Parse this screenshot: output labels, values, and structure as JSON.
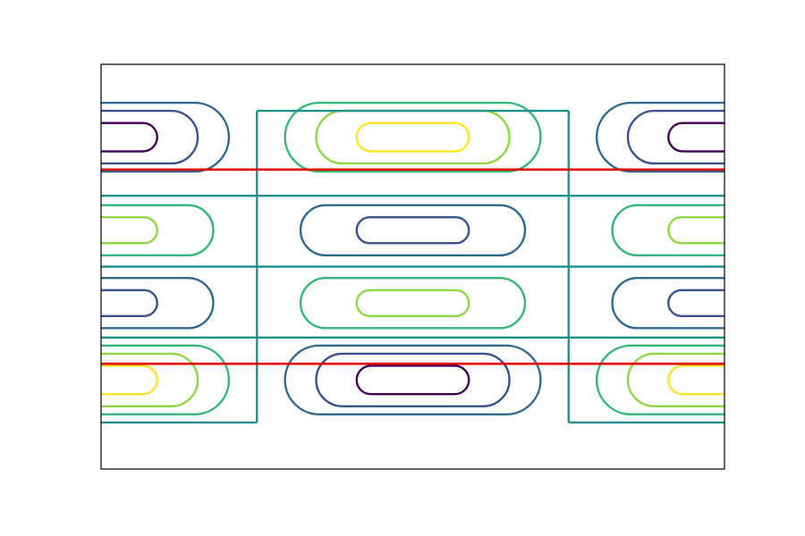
{
  "chart_data": {
    "type": "contour",
    "title": "",
    "xlabel": "",
    "ylabel": "",
    "xlim": [
      0,
      1
    ],
    "ylim": [
      0,
      1
    ],
    "grid": false,
    "ticks_visible": false,
    "legend": "none",
    "colormap": "viridis",
    "level_colors": [
      "#440154",
      "#3b528b",
      "#31688e",
      "#21918c",
      "#35b779",
      "#8fd744",
      "#fde725"
    ],
    "contour_groups": [
      {
        "name": "top-left",
        "cx": 0.0,
        "cy": 0.82,
        "colors": [
          "#440154",
          "#3b528b",
          "#31688e"
        ],
        "rx": [
          0.09,
          0.155,
          0.205
        ],
        "ry": [
          0.035,
          0.065,
          0.085
        ]
      },
      {
        "name": "top-center",
        "cx": 0.5,
        "cy": 0.82,
        "colors": [
          "#fde725",
          "#8fd744",
          "#35b779"
        ],
        "rx": [
          0.09,
          0.155,
          0.205
        ],
        "ry": [
          0.035,
          0.065,
          0.085
        ]
      },
      {
        "name": "top-right",
        "cx": 1.0,
        "cy": 0.82,
        "colors": [
          "#440154",
          "#3b528b",
          "#31688e"
        ],
        "rx": [
          0.09,
          0.155,
          0.205
        ],
        "ry": [
          0.035,
          0.065,
          0.085
        ]
      },
      {
        "name": "mid-upper-left",
        "cx": 0.0,
        "cy": 0.59,
        "colors": [
          "#8fd744",
          "#35b779"
        ],
        "rx": [
          0.09,
          0.18
        ],
        "ry": [
          0.032,
          0.062
        ]
      },
      {
        "name": "mid-upper-center",
        "cx": 0.5,
        "cy": 0.59,
        "colors": [
          "#3b528b",
          "#31688e"
        ],
        "rx": [
          0.09,
          0.18
        ],
        "ry": [
          0.032,
          0.062
        ]
      },
      {
        "name": "mid-upper-right",
        "cx": 1.0,
        "cy": 0.59,
        "colors": [
          "#8fd744",
          "#35b779"
        ],
        "rx": [
          0.09,
          0.18
        ],
        "ry": [
          0.032,
          0.062
        ]
      },
      {
        "name": "mid-lower-left",
        "cx": 0.0,
        "cy": 0.41,
        "colors": [
          "#3b528b",
          "#31688e"
        ],
        "rx": [
          0.09,
          0.18
        ],
        "ry": [
          0.032,
          0.062
        ]
      },
      {
        "name": "mid-lower-center",
        "cx": 0.5,
        "cy": 0.41,
        "colors": [
          "#8fd744",
          "#35b779"
        ],
        "rx": [
          0.09,
          0.18
        ],
        "ry": [
          0.032,
          0.062
        ]
      },
      {
        "name": "mid-lower-right",
        "cx": 1.0,
        "cy": 0.41,
        "colors": [
          "#3b528b",
          "#31688e"
        ],
        "rx": [
          0.09,
          0.18
        ],
        "ry": [
          0.032,
          0.062
        ]
      },
      {
        "name": "bottom-left",
        "cx": 0.0,
        "cy": 0.22,
        "colors": [
          "#fde725",
          "#8fd744",
          "#35b779"
        ],
        "rx": [
          0.09,
          0.155,
          0.205
        ],
        "ry": [
          0.035,
          0.065,
          0.085
        ]
      },
      {
        "name": "bottom-center",
        "cx": 0.5,
        "cy": 0.22,
        "colors": [
          "#440154",
          "#3b528b",
          "#31688e"
        ],
        "rx": [
          0.09,
          0.155,
          0.205
        ],
        "ry": [
          0.035,
          0.065,
          0.085
        ]
      },
      {
        "name": "bottom-right",
        "cx": 1.0,
        "cy": 0.22,
        "colors": [
          "#fde725",
          "#8fd744",
          "#35b779"
        ],
        "rx": [
          0.09,
          0.155,
          0.205
        ],
        "ry": [
          0.035,
          0.065,
          0.085
        ]
      }
    ],
    "zero_level": {
      "color": "#21918c",
      "horizontal_lines_y": [
        0.675,
        0.5,
        0.325
      ],
      "box_top_y": 0.885,
      "box_bottom_y": 0.115,
      "box_x": [
        0.25,
        0.75
      ]
    },
    "reference_lines": {
      "color": "#e00000",
      "y": [
        0.74,
        0.26
      ]
    }
  }
}
